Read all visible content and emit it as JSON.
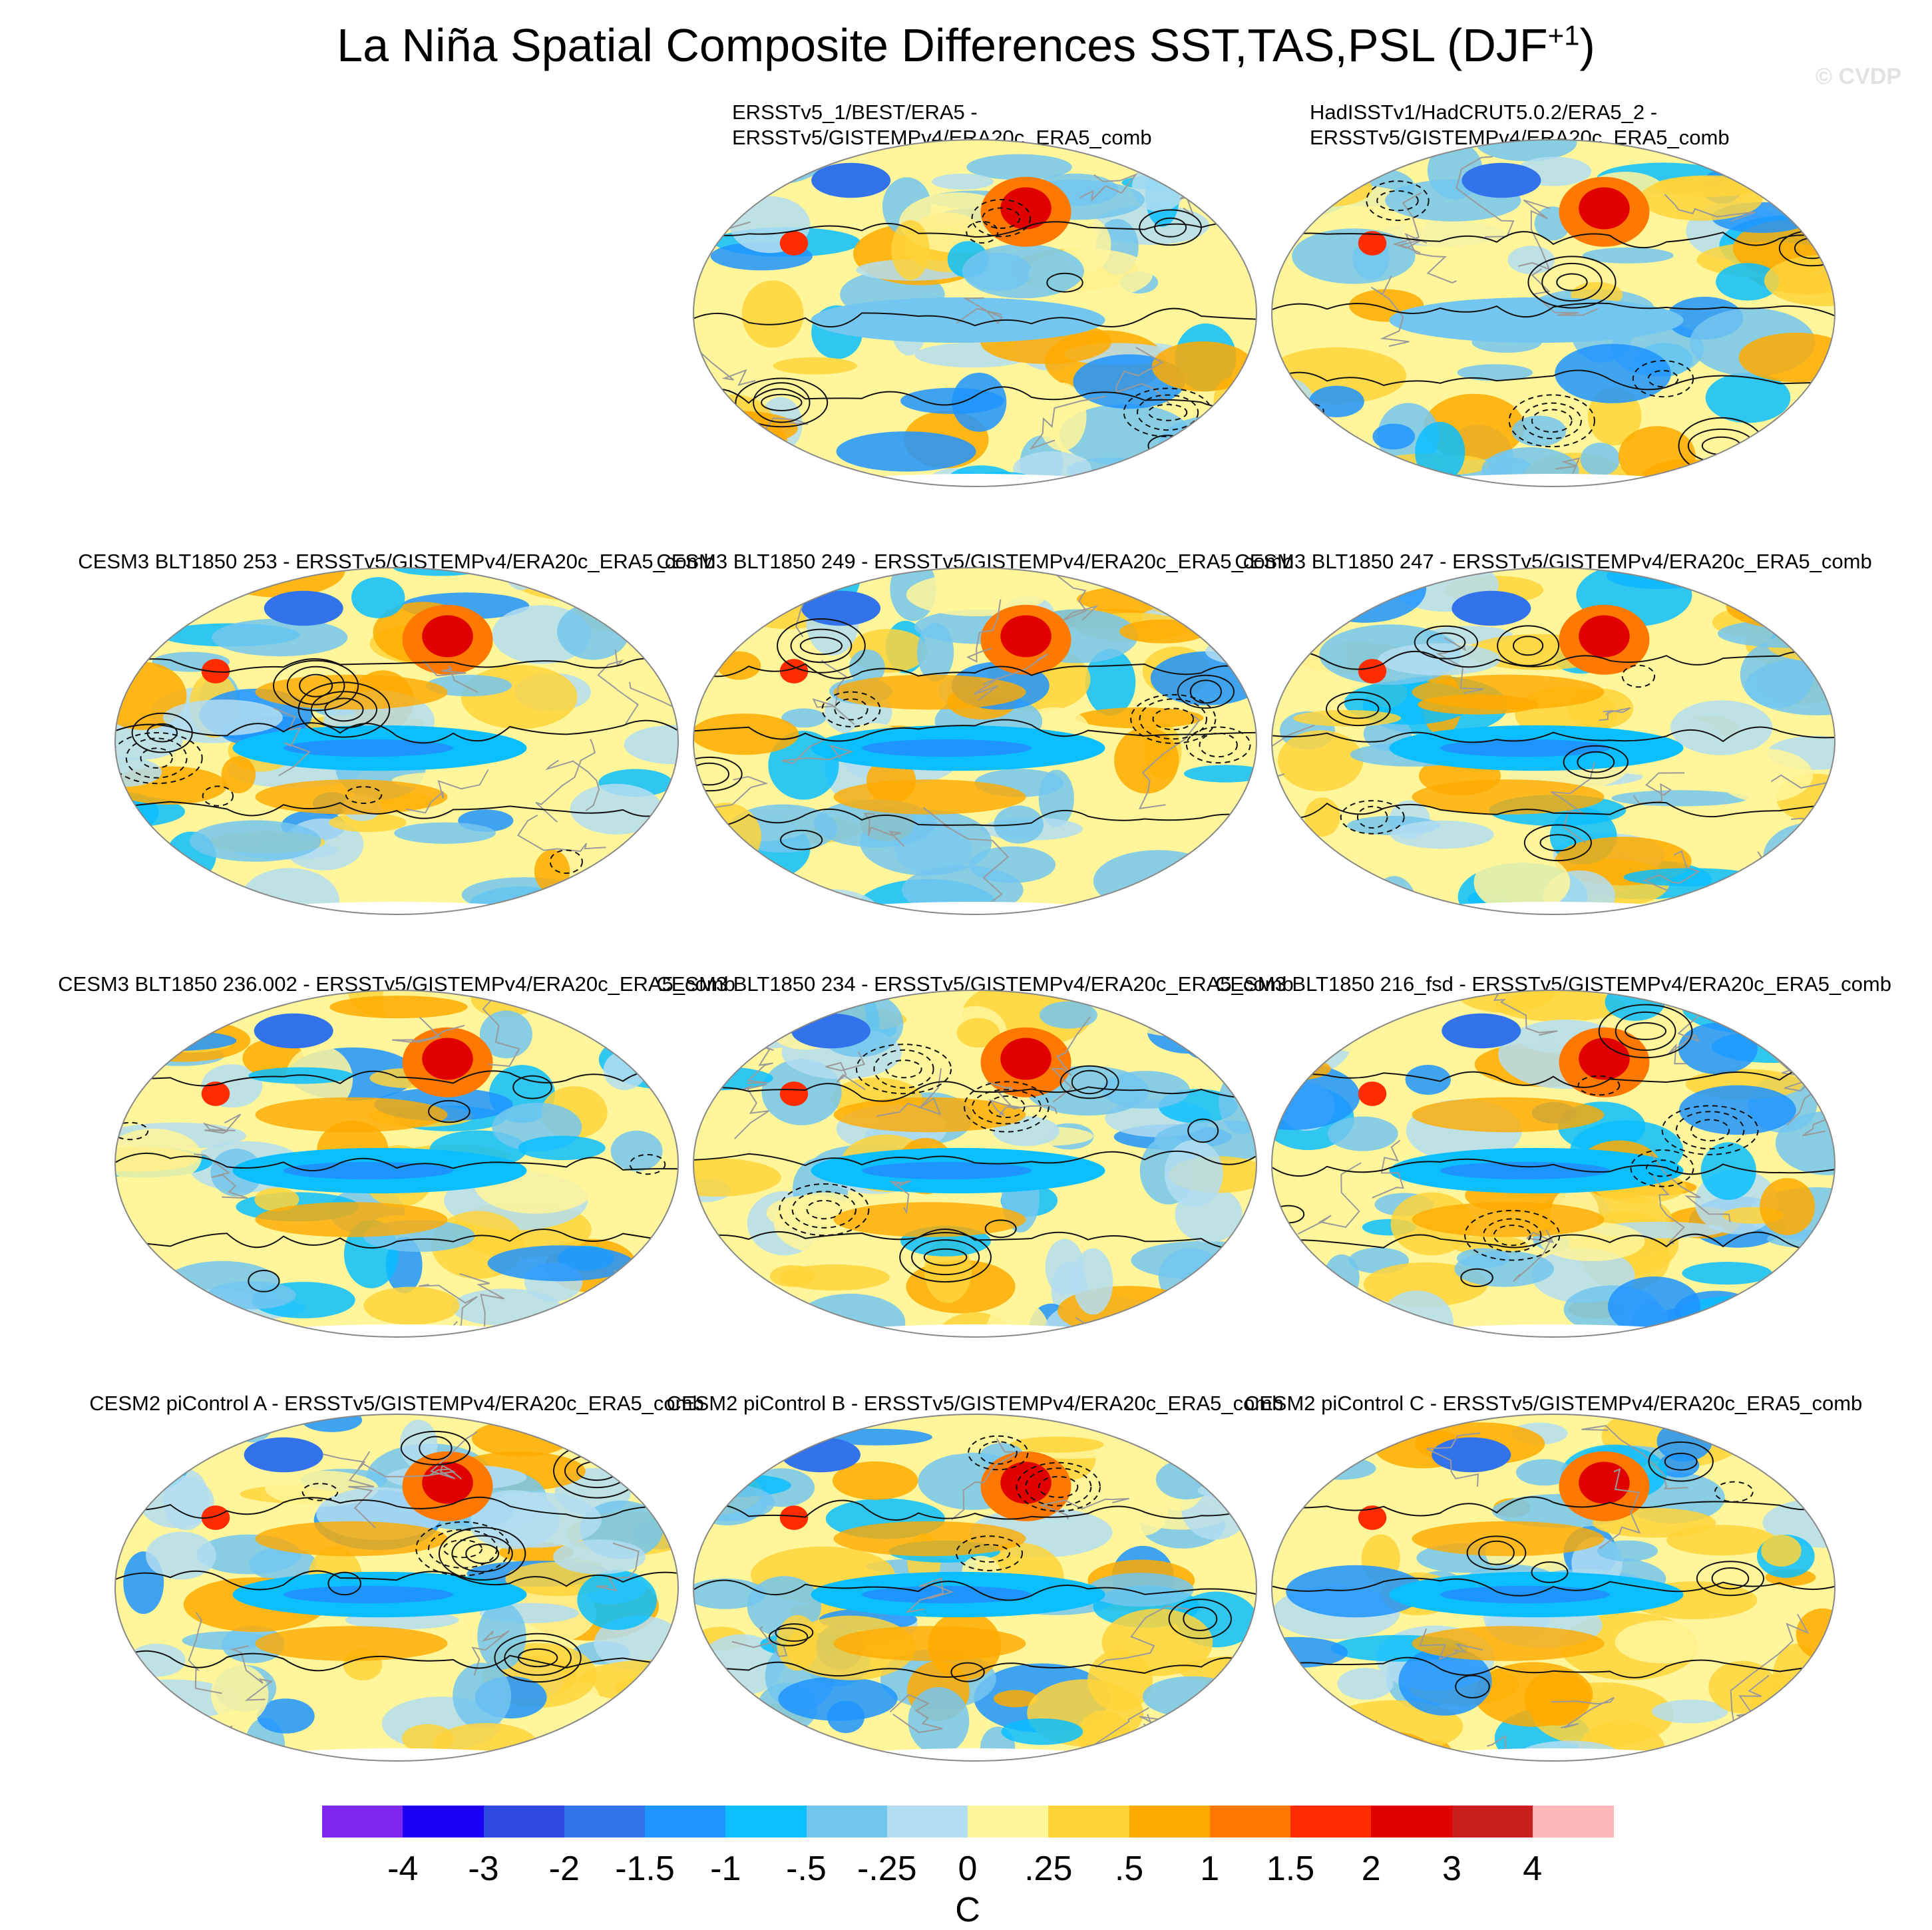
{
  "title": "La Niña Spatial Composite Differences SST,TAS,PSL (DJF",
  "title_sup": "+1",
  "title_end": ")",
  "credit": "© CVDP",
  "chart_data": {
    "type": "heatmap",
    "title": "La Niña Spatial Composite Differences SST,TAS,PSL (DJF+1)",
    "projection": "Robinson (global)",
    "fill_variable": "SST/TAS composite difference",
    "contour_variable": "PSL composite difference (solid positive, dashed negative)",
    "units": "C",
    "colorbar_levels": [
      "-4",
      "-3",
      "-2",
      "-1.5",
      "-1",
      "-.5",
      "-.25",
      "0",
      ".25",
      ".5",
      "1",
      "1.5",
      "2",
      "3",
      "4"
    ],
    "colorbar_colors": [
      "#7e27ed",
      "#1a00f5",
      "#2e49e0",
      "#3272ea",
      "#1e94ff",
      "#0bbeff",
      "#73c6ef",
      "#b3ddf1",
      "#fff59a",
      "#ffd43a",
      "#ffaa00",
      "#ff7800",
      "#ff2c00",
      "#e00000",
      "#c81e1e",
      "#ffb6b8"
    ],
    "panels": [
      {
        "title_line1": "ERSSTv5_1/BEST/ERA5 -",
        "title_line2": "ERSSTv5/GISTEMPv4/ERA20c_ERA5_comb"
      },
      {
        "title_line1": "HadISSTv1/HadCRUT5.0.2/ERA5_2 -",
        "title_line2": "ERSSTv5/GISTEMPv4/ERA20c_ERA5_comb"
      },
      {
        "title_line1": "CESM3 BLT1850 253 - ERSSTv5/GISTEMPv4/ERA20c_ERA5_comb",
        "title_line2": ""
      },
      {
        "title_line1": "CESM3 BLT1850 249 - ERSSTv5/GISTEMPv4/ERA20c_ERA5_comb",
        "title_line2": ""
      },
      {
        "title_line1": "CESM3 BLT1850 247 - ERSSTv5/GISTEMPv4/ERA20c_ERA5_comb",
        "title_line2": ""
      },
      {
        "title_line1": "CESM3 BLT1850 236.002 - ERSSTv5/GISTEMPv4/ERA20c_ERA5_comb",
        "title_line2": ""
      },
      {
        "title_line1": "CESM3 BLT1850 234 - ERSSTv5/GISTEMPv4/ERA20c_ERA5_comb",
        "title_line2": ""
      },
      {
        "title_line1": "CESM3 BLT1850 216_fsd - ERSSTv5/GISTEMPv4/ERA20c_ERA5_comb",
        "title_line2": ""
      },
      {
        "title_line1": "CESM2 piControl A - ERSSTv5/GISTEMPv4/ERA20c_ERA5_comb",
        "title_line2": ""
      },
      {
        "title_line1": "CESM2 piControl B - ERSSTv5/GISTEMPv4/ERA20c_ERA5_comb",
        "title_line2": ""
      },
      {
        "title_line1": "CESM2 piControl C - ERSSTv5/GISTEMPv4/ERA20c_ERA5_comb",
        "title_line2": ""
      }
    ]
  }
}
